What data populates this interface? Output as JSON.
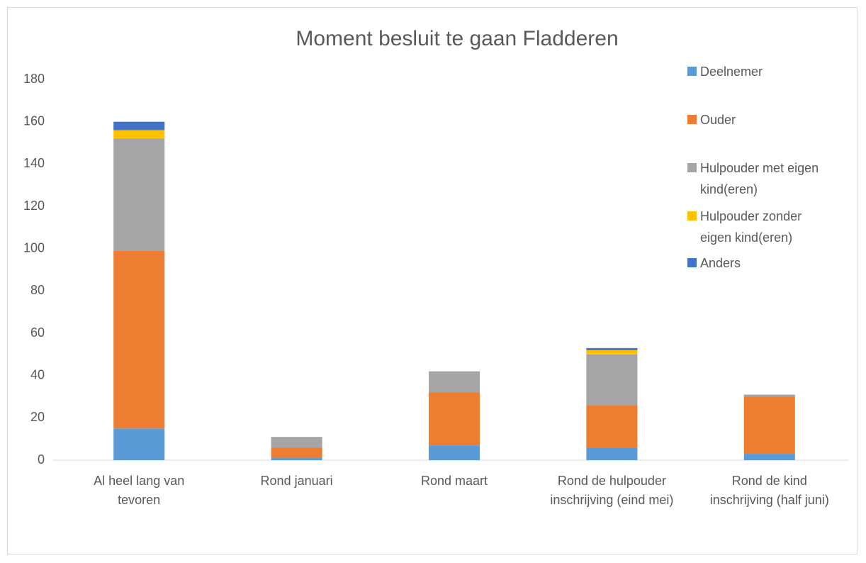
{
  "chart_data": {
    "type": "bar",
    "stacked": true,
    "title": "Moment besluit te gaan Fladderen",
    "categories": [
      "Al heel lang van tevoren",
      "Rond januari",
      "Rond maart",
      "Rond de hulpouder inschrijving (eind mei)",
      "Rond de kind inschrijving (half juni)"
    ],
    "series": [
      {
        "name": "Deelnemer",
        "color": "#5b9bd5",
        "values": [
          15,
          1,
          7,
          6,
          3
        ]
      },
      {
        "name": "Ouder",
        "color": "#ed7d31",
        "values": [
          84,
          5,
          25,
          20,
          27
        ]
      },
      {
        "name": "Hulpouder met eigen kind(eren)",
        "color": "#a5a5a5",
        "values": [
          53,
          5,
          10,
          24,
          1
        ]
      },
      {
        "name": "Hulpouder zonder eigen kind(eren)",
        "color": "#ffc000",
        "values": [
          4,
          0,
          0,
          2,
          0
        ]
      },
      {
        "name": "Anders",
        "color": "#4472c4",
        "values": [
          4,
          0,
          0,
          1,
          0
        ]
      }
    ],
    "ylim": [
      0,
      180
    ],
    "yticks": [
      0,
      20,
      40,
      60,
      80,
      100,
      120,
      140,
      160,
      180
    ],
    "grid": false,
    "legend": "right"
  }
}
